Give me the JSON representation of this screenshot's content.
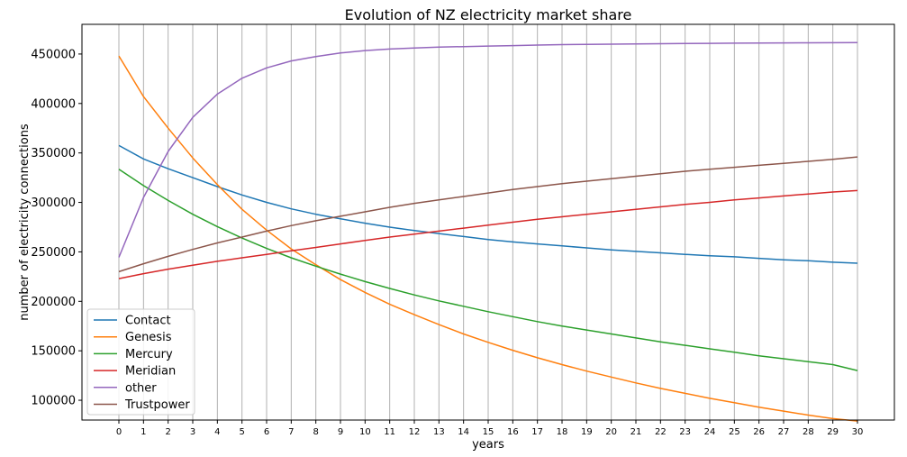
{
  "chart_data": {
    "type": "line",
    "title": "Evolution of NZ electricity market share",
    "xlabel": "years",
    "ylabel": "number of electricity connections",
    "x": [
      0,
      1,
      2,
      3,
      4,
      5,
      6,
      7,
      8,
      9,
      10,
      11,
      12,
      13,
      14,
      15,
      16,
      17,
      18,
      19,
      20,
      21,
      22,
      23,
      24,
      25,
      26,
      27,
      28,
      29,
      30
    ],
    "xlim": [
      -1.5,
      31.5
    ],
    "ylim": [
      80000,
      480000
    ],
    "xticks": [
      "0",
      "1",
      "2",
      "3",
      "4",
      "5",
      "6",
      "7",
      "8",
      "9",
      "10",
      "11",
      "12",
      "13",
      "14",
      "15",
      "16",
      "17",
      "18",
      "19",
      "20",
      "21",
      "22",
      "23",
      "24",
      "25",
      "26",
      "27",
      "28",
      "29",
      "30"
    ],
    "yticks": [
      100000,
      150000,
      200000,
      250000,
      300000,
      350000,
      400000,
      450000
    ],
    "ytick_labels": [
      "100000",
      "150000",
      "200000",
      "250000",
      "300000",
      "350000",
      "400000",
      "450000"
    ],
    "grid": "vertical",
    "legend_position": "lower-left",
    "series": [
      {
        "name": "Contact",
        "color": "#1f77b4",
        "values": [
          357500,
          344000,
          334000,
          325000,
          316000,
          307500,
          300000,
          293500,
          288000,
          283500,
          279000,
          275000,
          271500,
          268500,
          265500,
          262500,
          260000,
          258000,
          256000,
          254000,
          252000,
          250500,
          249000,
          247500,
          246000,
          245000,
          243500,
          242000,
          241000,
          239500,
          238500
        ]
      },
      {
        "name": "Genesis",
        "color": "#ff7f0e",
        "values": [
          448000,
          407000,
          375000,
          345000,
          318000,
          293000,
          272000,
          253000,
          237000,
          222000,
          209000,
          197000,
          186500,
          176500,
          167000,
          158500,
          150500,
          143000,
          136000,
          129500,
          123500,
          117500,
          112000,
          107000,
          102000,
          97500,
          93000,
          89000,
          85000,
          81500,
          79000
        ]
      },
      {
        "name": "Mercury",
        "color": "#2ca02c",
        "values": [
          333500,
          317000,
          302000,
          288000,
          275500,
          264000,
          253500,
          244000,
          235500,
          227500,
          220000,
          213000,
          206500,
          200500,
          195000,
          189500,
          184500,
          179500,
          175000,
          171000,
          167000,
          163000,
          159000,
          155500,
          152000,
          148500,
          145000,
          142000,
          139000,
          136000,
          130000
        ]
      },
      {
        "name": "Meridian",
        "color": "#d62728",
        "values": [
          223000,
          228000,
          232500,
          236500,
          240500,
          244000,
          247500,
          251000,
          254500,
          258000,
          261500,
          265000,
          268000,
          271000,
          274000,
          277000,
          280000,
          283000,
          285500,
          288000,
          290500,
          293000,
          295500,
          298000,
          300000,
          302500,
          304500,
          306500,
          308500,
          310500,
          312000
        ]
      },
      {
        "name": "other",
        "color": "#9467bd",
        "values": [
          244500,
          305000,
          351500,
          386000,
          409500,
          425500,
          436000,
          443000,
          447500,
          451000,
          453500,
          455000,
          456000,
          457000,
          457500,
          458000,
          458500,
          459000,
          459500,
          459700,
          460000,
          460200,
          460400,
          460600,
          460800,
          461000,
          461100,
          461200,
          461300,
          461400,
          461500
        ]
      },
      {
        "name": "Trustpower",
        "color": "#8c564b",
        "values": [
          230000,
          238000,
          245500,
          252500,
          259000,
          265000,
          271000,
          276500,
          281500,
          286000,
          290500,
          295000,
          299000,
          302500,
          306000,
          309500,
          313000,
          316000,
          319000,
          321500,
          324000,
          326500,
          329000,
          331500,
          333500,
          335500,
          337500,
          339500,
          341500,
          343500,
          346000
        ]
      }
    ]
  }
}
